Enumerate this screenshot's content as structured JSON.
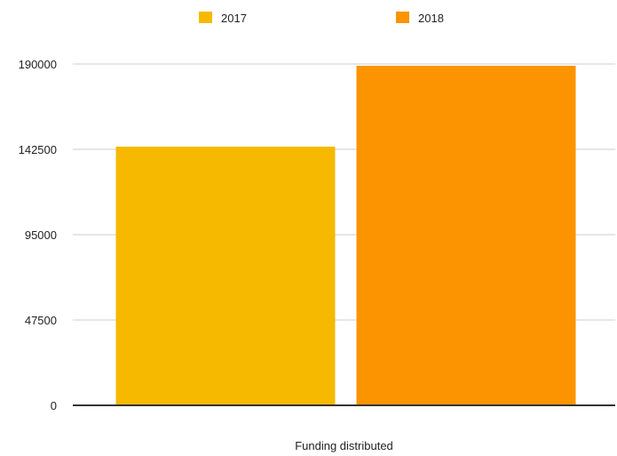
{
  "chart_data": {
    "type": "bar",
    "title": "",
    "xlabel": "",
    "ylabel": "",
    "categories": [
      "Funding distributed"
    ],
    "series": [
      {
        "name": "2017",
        "values": [
          144000
        ],
        "color": "#F6B900"
      },
      {
        "name": "2018",
        "values": [
          189000
        ],
        "color": "#FB9400"
      }
    ],
    "ylim": [
      0,
      190000
    ],
    "yticks": [
      0,
      47500,
      95000,
      142500,
      190000
    ],
    "ytick_labels": [
      "0",
      "47500",
      "95000",
      "142500",
      "190000"
    ],
    "grid": true,
    "legend_position": "top"
  }
}
